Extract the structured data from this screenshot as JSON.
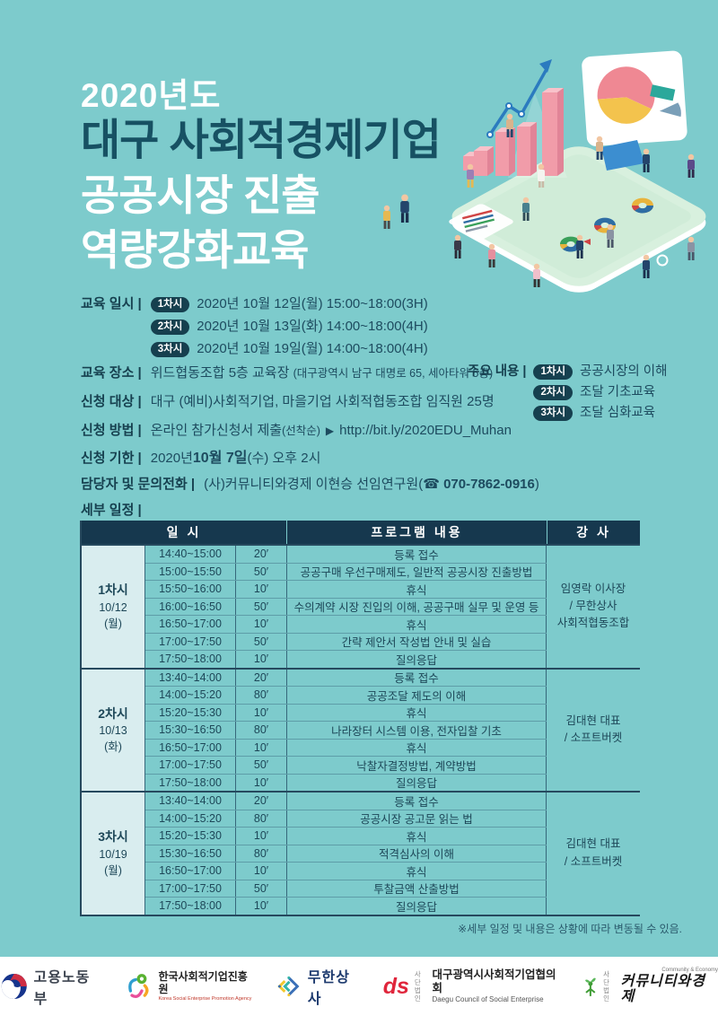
{
  "title": {
    "year": "2020년도",
    "line1": "대구 사회적경제기업",
    "line2": "공공시장 진출",
    "line3": "역량강화교육"
  },
  "info": {
    "schedule": {
      "label": "교육 일시 |",
      "items": [
        {
          "badge": "1차시",
          "text": "2020년 10월 12일(월) 15:00~18:00(3H)"
        },
        {
          "badge": "2차시",
          "text": "2020년 10월 13일(화) 14:00~18:00(4H)"
        },
        {
          "badge": "3차시",
          "text": "2020년 10월 19일(월) 14:00~18:00(4H)"
        }
      ]
    },
    "location": {
      "label": "교육 장소 |",
      "text": "위드협동조합 5층 교육장",
      "subtext": "(대구광역시 남구 대명로 65, 세아타워 5층)"
    },
    "target": {
      "label": "신청 대상 |",
      "text": "대구 (예비)사회적기업, 마을기업 사회적협동조합 임직원 25명"
    },
    "method": {
      "label": "신청 방법 |",
      "text": "온라인 참가신청서 제출",
      "note": "(선착순)",
      "arrow": "▶",
      "url": "http://bit.ly/2020EDU_Muhan"
    },
    "deadline": {
      "label": "신청 기한 |",
      "pre": "2020년 ",
      "bold": "10월 7일",
      "post": "(수) 오후 2시"
    },
    "contact": {
      "label": "담당자 및 문의전화 |",
      "pre": "(사)커뮤니티와경제 이현승 선임연구원(",
      "phone": "☎ 070-7862-0916",
      "post": ")"
    },
    "topics": {
      "label": "주요 내용 |",
      "items": [
        {
          "badge": "1차시",
          "text": "공공시장의 이해"
        },
        {
          "badge": "2차시",
          "text": "조달 기초교육"
        },
        {
          "badge": "3차시",
          "text": "조달 심화교육"
        }
      ]
    },
    "detail_label": "세부 일정 |"
  },
  "table": {
    "headers": [
      "일 시",
      "프로그램 내용",
      "강 사"
    ],
    "sections": [
      {
        "session": "1차시",
        "date": "10/12",
        "day": "(월)",
        "instructor": [
          "임영락 이사장",
          "/ 무한상사",
          "사회적협동조합"
        ],
        "rows": [
          {
            "time": "14:40~15:00",
            "dur": "20′",
            "program": "등록 접수"
          },
          {
            "time": "15:00~15:50",
            "dur": "50′",
            "program": "공공구매 우선구매제도, 일반적 공공시장 진출방법"
          },
          {
            "time": "15:50~16:00",
            "dur": "10′",
            "program": "휴식"
          },
          {
            "time": "16:00~16:50",
            "dur": "50′",
            "program": "수의계약 시장 진입의 이해, 공공구매 실무 및 운영 등"
          },
          {
            "time": "16:50~17:00",
            "dur": "10′",
            "program": "휴식"
          },
          {
            "time": "17:00~17:50",
            "dur": "50′",
            "program": "간략 제안서 작성법 안내 및 실습"
          },
          {
            "time": "17:50~18:00",
            "dur": "10′",
            "program": "질의응답"
          }
        ]
      },
      {
        "session": "2차시",
        "date": "10/13",
        "day": "(화)",
        "instructor": [
          "김대현 대표",
          "/ 소프트버켓"
        ],
        "rows": [
          {
            "time": "13:40~14:00",
            "dur": "20′",
            "program": "등록 접수"
          },
          {
            "time": "14:00~15:20",
            "dur": "80′",
            "program": "공공조달 제도의 이해"
          },
          {
            "time": "15:20~15:30",
            "dur": "10′",
            "program": "휴식"
          },
          {
            "time": "15:30~16:50",
            "dur": "80′",
            "program": "나라장터 시스템 이용, 전자입찰 기초"
          },
          {
            "time": "16:50~17:00",
            "dur": "10′",
            "program": "휴식"
          },
          {
            "time": "17:00~17:50",
            "dur": "50′",
            "program": "낙찰자결정방법, 계약방법"
          },
          {
            "time": "17:50~18:00",
            "dur": "10′",
            "program": "질의응답"
          }
        ]
      },
      {
        "session": "3차시",
        "date": "10/19",
        "day": "(월)",
        "instructor": [
          "김대현 대표",
          "/ 소프트버켓"
        ],
        "rows": [
          {
            "time": "13:40~14:00",
            "dur": "20′",
            "program": "등록 접수"
          },
          {
            "time": "14:00~15:20",
            "dur": "80′",
            "program": "공공시장 공고문 읽는 법"
          },
          {
            "time": "15:20~15:30",
            "dur": "10′",
            "program": "휴식"
          },
          {
            "time": "15:30~16:50",
            "dur": "80′",
            "program": "적격심사의 이해"
          },
          {
            "time": "16:50~17:00",
            "dur": "10′",
            "program": "휴식"
          },
          {
            "time": "17:00~17:50",
            "dur": "50′",
            "program": "투찰금액 산출방법"
          },
          {
            "time": "17:50~18:00",
            "dur": "10′",
            "program": "질의응답"
          }
        ]
      }
    ],
    "footnote": "※세부 일정 및 내용은 상황에 따라 변동될 수 있음."
  },
  "footer": {
    "logos": [
      {
        "name": "고용노동부"
      },
      {
        "name": "한국사회적기업진흥원",
        "sub": "Korea Social Enterprise Promotion Agency"
      },
      {
        "name": "무한상사"
      },
      {
        "prefix1": "사단",
        "prefix2": "법인",
        "name": "대구광역시사회적기업협의회",
        "sub": "Daegu Council of Social Enterprise"
      },
      {
        "prefix1": "사단",
        "prefix2": "법인",
        "name": "커뮤니티와경제",
        "sub": "Community & Economy"
      }
    ]
  },
  "colors": {
    "background_teal": "#7DCBCC",
    "navy": "#16384E",
    "title_navy": "#175163",
    "pale_cell": "#D9EDEF",
    "bar_pink": "#F19CA9",
    "arrow_blue": "#2B7BBF",
    "white": "#FFFFFF"
  }
}
